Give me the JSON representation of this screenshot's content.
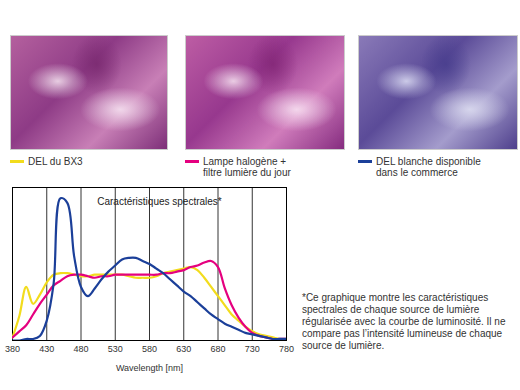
{
  "chart_data": {
    "type": "line",
    "title": "Caractéristiques spectrales*",
    "x_label": "Wavelength [nm]",
    "footnote": "*Ce graphique montre les caractéristiques spectrales de chaque source de lumière régularisée avec la courbe de luminosité. Il ne compare pas l’intensité lumineuse de chaque source de lumière.",
    "x": [
      380,
      390,
      400,
      410,
      420,
      430,
      440,
      450,
      460,
      470,
      480,
      490,
      500,
      510,
      520,
      530,
      540,
      550,
      560,
      570,
      580,
      590,
      600,
      610,
      620,
      630,
      640,
      650,
      660,
      670,
      680,
      690,
      700,
      710,
      720,
      730,
      740,
      750,
      760,
      770,
      780
    ],
    "series": [
      {
        "name": "DEL du BX3",
        "color": "#f2dc1d",
        "values": [
          2,
          16,
          35,
          24,
          30,
          38,
          43,
          44,
          44,
          43,
          42,
          42,
          43,
          43,
          43,
          43,
          43,
          42,
          41,
          41,
          41,
          42,
          44,
          45,
          46,
          47,
          48,
          46,
          41,
          35,
          29,
          23,
          17,
          13,
          9,
          6,
          4,
          3,
          2,
          1,
          1
        ]
      },
      {
        "name": "Lampe halogène +\nfiltre lumière du jour",
        "color": "#e5007f",
        "values": [
          2,
          6,
          10,
          17,
          24,
          30,
          36,
          39,
          42,
          43,
          43,
          42,
          41,
          42,
          42,
          43,
          43,
          43,
          43,
          43,
          43,
          43,
          44,
          44,
          45,
          46,
          48,
          49,
          51,
          52,
          48,
          34,
          23,
          15,
          9,
          5,
          3,
          2,
          1,
          1,
          1
        ]
      },
      {
        "name": "DEL blanche disponible\ndans le commerce",
        "color": "#1b3f99",
        "values": [
          0,
          0,
          1,
          1,
          3,
          13,
          37,
          93,
          90,
          55,
          35,
          29,
          34,
          40,
          45,
          49,
          53,
          54,
          54,
          52,
          50,
          47,
          44,
          40,
          36,
          32,
          29,
          25,
          21,
          17,
          14,
          11,
          9,
          7,
          5,
          4,
          3,
          2,
          1,
          1,
          1
        ]
      }
    ],
    "xlim": [
      380,
      780
    ],
    "xticks": [
      380,
      430,
      480,
      530,
      580,
      630,
      680,
      730,
      780
    ],
    "ylim": [
      0,
      100
    ],
    "grid": true,
    "tick_labels": "x"
  }
}
